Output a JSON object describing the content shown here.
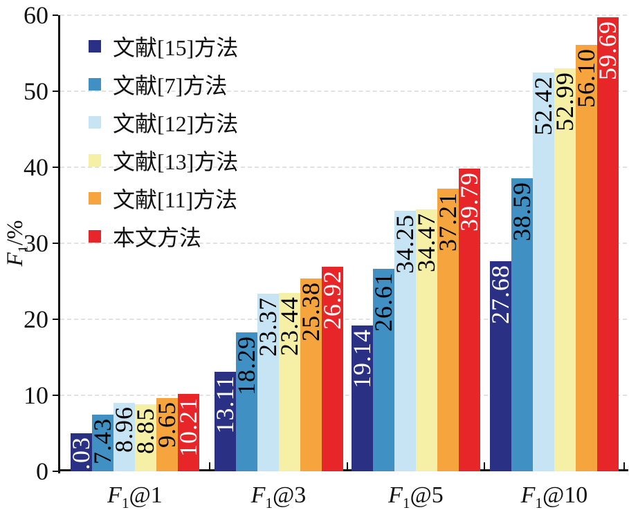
{
  "chart_data": {
    "type": "bar",
    "title": "",
    "xlabel": "",
    "ylabel_text": "F1/%",
    "ylabel_parts": {
      "base": "F",
      "sub": "1",
      "suffix": "/%"
    },
    "ylim": [
      0,
      60
    ],
    "yticks": [
      0,
      10,
      20,
      30,
      40,
      50,
      60
    ],
    "grid": "horizontal dashed",
    "legend_position": "top-left inside plot",
    "value_label_style": "rotated 90deg, at top of each bar",
    "categories": [
      {
        "label": "F1@1",
        "base": "F",
        "sub": "1",
        "suffix": "@1"
      },
      {
        "label": "F1@3",
        "base": "F",
        "sub": "1",
        "suffix": "@3"
      },
      {
        "label": "F1@5",
        "base": "F",
        "sub": "1",
        "suffix": "@5"
      },
      {
        "label": "F1@10",
        "base": "F",
        "sub": "1",
        "suffix": "@10"
      }
    ],
    "series": [
      {
        "name": "文献[15]方法",
        "color": "#2a3184",
        "label_color": "#ffffff",
        "values": [
          5.03,
          13.11,
          19.14,
          27.68
        ]
      },
      {
        "name": "文献[7]方法",
        "color": "#4090c4",
        "label_color": "#000000",
        "values": [
          7.43,
          18.29,
          26.61,
          38.59
        ]
      },
      {
        "name": "文献[12]方法",
        "color": "#c6e4f3",
        "label_color": "#000000",
        "values": [
          8.96,
          23.37,
          34.25,
          52.42
        ]
      },
      {
        "name": "文献[13]方法",
        "color": "#f5f0a5",
        "label_color": "#000000",
        "values": [
          8.85,
          23.44,
          34.47,
          52.99
        ]
      },
      {
        "name": "文献[11]方法",
        "color": "#f6a53e",
        "label_color": "#000000",
        "values": [
          9.65,
          25.38,
          37.21,
          56.1
        ]
      },
      {
        "name": "本文方法",
        "color": "#e7262a",
        "label_color": "#ffffff",
        "values": [
          10.21,
          26.92,
          39.79,
          59.69
        ]
      }
    ]
  },
  "colors": {
    "background": "#ffffff",
    "axis": "#111111",
    "gridline": "#e2e2e2",
    "tick_text": "#111111"
  }
}
